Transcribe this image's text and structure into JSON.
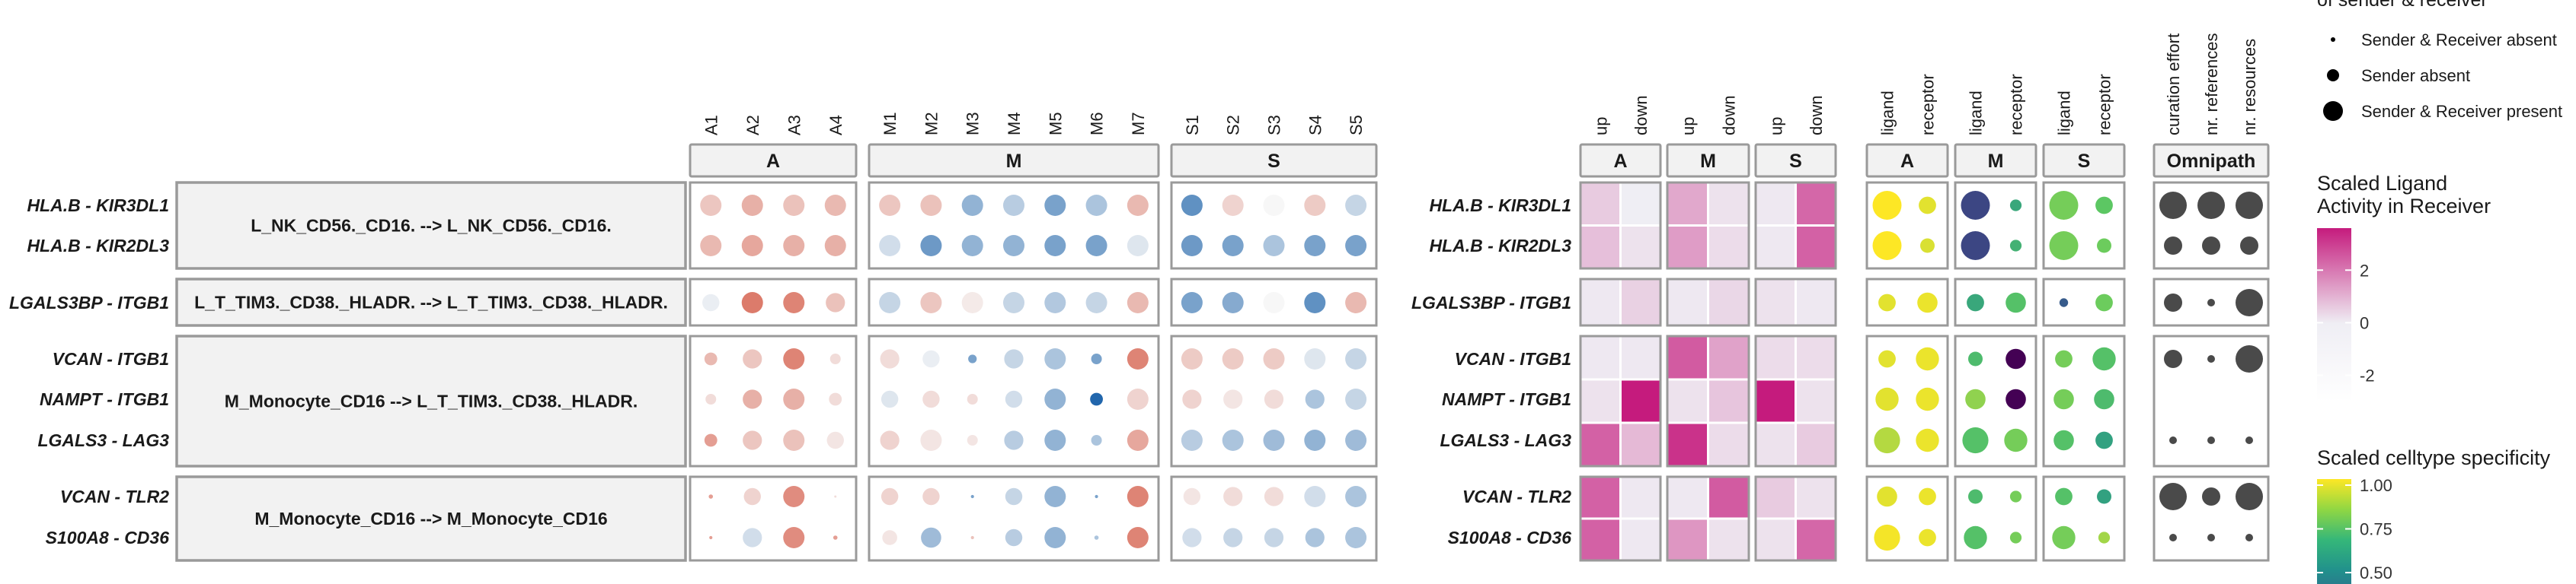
{
  "chart_data": {
    "type": "bubble-heatmap",
    "interactions": [
      {
        "group": "L_NK_CD56._CD16. --> L_NK_CD56._CD16.",
        "lr": [
          "HLA.B - KIR3DL1",
          "HLA.B - KIR2DL3"
        ]
      },
      {
        "group": "L_T_TIM3._CD38._HLADR. --> L_T_TIM3._CD38._HLADR.",
        "lr": [
          "LGALS3BP - ITGB1"
        ]
      },
      {
        "group": "M_Monocyte_CD16 --> L_T_TIM3._CD38._HLADR.",
        "lr": [
          "VCAN - ITGB1",
          "NAMPT - ITGB1",
          "LGALS3 - LAG3"
        ]
      },
      {
        "group": "M_Monocyte_CD16 --> M_Monocyte_CD16",
        "lr": [
          "VCAN - TLR2",
          "S100A8 - CD36"
        ]
      }
    ],
    "expression_panels": [
      {
        "name": "A",
        "columns": [
          "A1",
          "A2",
          "A3",
          "A4"
        ]
      },
      {
        "name": "M",
        "columns": [
          "M1",
          "M2",
          "M3",
          "M4",
          "M5",
          "M6",
          "M7"
        ]
      },
      {
        "name": "S",
        "columns": [
          "S1",
          "S2",
          "S3",
          "S4",
          "S5"
        ]
      }
    ],
    "expression_values": [
      [
        [
          0.55,
          0.8,
          0.6,
          0.7
        ],
        [
          0.55,
          0.6,
          -0.8,
          -0.5,
          -1.0,
          -0.6,
          0.7
        ],
        [
          -1.2,
          0.4,
          0.0,
          0.5,
          -0.4
        ]
      ],
      [
        [
          0.7,
          0.9,
          0.8,
          0.8
        ],
        [
          -0.3,
          -1.1,
          -0.8,
          -0.8,
          -1.0,
          -1.0,
          -0.2
        ],
        [
          -1.1,
          -1.0,
          -0.6,
          -1.0,
          -1.0
        ]
      ],
      [
        [
          -0.1,
          1.4,
          1.3,
          0.6
        ],
        [
          -0.4,
          0.55,
          0.15,
          -0.4,
          -0.55,
          -0.4,
          0.7
        ],
        [
          -1.0,
          -0.9,
          0.0,
          -1.2,
          0.7
        ]
      ],
      [
        [
          0.7,
          0.55,
          1.3,
          0.3
        ],
        [
          0.3,
          -0.1,
          -1.0,
          -0.4,
          -0.6,
          -1.0,
          1.3
        ],
        [
          0.5,
          0.5,
          0.5,
          -0.2,
          -0.4
        ]
      ],
      [
        [
          0.3,
          0.8,
          0.8,
          0.3
        ],
        [
          -0.2,
          0.3,
          0.3,
          -0.3,
          -0.8,
          -1.7,
          0.4
        ],
        [
          0.4,
          0.2,
          0.3,
          -0.6,
          -0.4
        ]
      ],
      [
        [
          1.0,
          0.55,
          0.6,
          0.2
        ],
        [
          0.4,
          0.2,
          0.2,
          -0.5,
          -0.8,
          -0.6,
          0.9
        ],
        [
          -0.5,
          -0.6,
          -0.7,
          -0.8,
          -0.7
        ]
      ],
      [
        [
          1.0,
          0.4,
          1.2,
          0.3
        ],
        [
          0.4,
          0.4,
          -1.0,
          -0.4,
          -0.8,
          -1.0,
          1.3
        ],
        [
          0.2,
          0.3,
          0.3,
          -0.3,
          -0.6
        ]
      ],
      [
        [
          1.0,
          -0.3,
          1.2,
          1.0
        ],
        [
          0.2,
          -0.7,
          0.6,
          -0.5,
          -0.8,
          -0.6,
          1.3
        ],
        [
          -0.3,
          -0.4,
          -0.4,
          -0.6,
          -0.6
        ]
      ]
    ],
    "expression_sizes": [
      [
        [
          1,
          1,
          1,
          1
        ],
        [
          1,
          1,
          1,
          1,
          1,
          1,
          1
        ],
        [
          1,
          1,
          1,
          1,
          1
        ]
      ],
      [
        [
          1,
          1,
          1,
          1
        ],
        [
          1,
          1,
          1,
          1,
          1,
          1,
          1
        ],
        [
          1,
          1,
          1,
          1,
          1
        ]
      ],
      [
        [
          0.8,
          1,
          1,
          0.9
        ],
        [
          1,
          1,
          1,
          1,
          1,
          1,
          1
        ],
        [
          1,
          1,
          1,
          1,
          1
        ]
      ],
      [
        [
          0.6,
          0.9,
          1,
          0.5
        ],
        [
          0.9,
          0.8,
          0.4,
          0.9,
          1,
          0.5,
          1
        ],
        [
          1,
          1,
          1,
          1,
          1
        ]
      ],
      [
        [
          0.5,
          0.9,
          1,
          0.6
        ],
        [
          0.8,
          0.8,
          0.5,
          0.8,
          1,
          0.6,
          1
        ],
        [
          0.9,
          0.9,
          0.9,
          0.9,
          1
        ]
      ],
      [
        [
          0.6,
          0.9,
          1,
          0.8
        ],
        [
          0.9,
          1,
          0.5,
          0.9,
          1,
          0.5,
          1
        ],
        [
          1,
          1,
          1,
          1,
          1
        ]
      ],
      [
        [
          0.2,
          0.8,
          1,
          0.1
        ],
        [
          0.8,
          0.8,
          0.15,
          0.8,
          1,
          0.15,
          1
        ],
        [
          0.8,
          0.9,
          0.9,
          1,
          1
        ]
      ],
      [
        [
          0.15,
          0.9,
          1,
          0.2
        ],
        [
          0.7,
          0.95,
          0.15,
          0.8,
          1,
          0.2,
          1
        ],
        [
          0.9,
          0.9,
          0.9,
          0.9,
          1
        ]
      ]
    ],
    "activity_panels": [
      {
        "name": "A",
        "columns": [
          "up",
          "down"
        ]
      },
      {
        "name": "M",
        "columns": [
          "up",
          "down"
        ]
      },
      {
        "name": "S",
        "columns": [
          "up",
          "down"
        ]
      }
    ],
    "activity_values": [
      [
        [
          0.6,
          0.0
        ],
        [
          1.2,
          0.2
        ],
        [
          0.1,
          2.3
        ]
      ],
      [
        [
          0.8,
          0.2
        ],
        [
          1.4,
          0.3
        ],
        [
          0.1,
          2.4
        ]
      ],
      [
        [
          0.1,
          0.5
        ],
        [
          0.1,
          0.4
        ],
        [
          0.2,
          0.1
        ]
      ],
      [
        [
          0.1,
          0.1
        ],
        [
          2.5,
          1.3
        ],
        [
          0.3,
          0.3
        ]
      ],
      [
        [
          0.2,
          3.6
        ],
        [
          0.2,
          0.7
        ],
        [
          3.6,
          0.2
        ]
      ],
      [
        [
          2.4,
          0.9
        ],
        [
          3.2,
          0.3
        ],
        [
          0.2,
          0.6
        ]
      ],
      [
        [
          2.4,
          0.1
        ],
        [
          0.1,
          2.5
        ],
        [
          0.6,
          0.2
        ]
      ],
      [
        [
          2.4,
          0.1
        ],
        [
          1.5,
          0.2
        ],
        [
          0.2,
          2.3
        ]
      ]
    ],
    "specificity_panels": [
      {
        "name": "A",
        "columns": [
          "ligand",
          "receptor"
        ]
      },
      {
        "name": "M",
        "columns": [
          "ligand",
          "receptor"
        ]
      },
      {
        "name": "S",
        "columns": [
          "ligand",
          "receptor"
        ]
      }
    ],
    "specificity_values": [
      [
        [
          1.0,
          0.97
        ],
        [
          0.45,
          0.72
        ],
        [
          0.85,
          0.82
        ]
      ],
      [
        [
          1.0,
          0.96
        ],
        [
          0.45,
          0.75
        ],
        [
          0.85,
          0.84
        ]
      ],
      [
        [
          0.97,
          0.98
        ],
        [
          0.72,
          0.8
        ],
        [
          0.5,
          0.84
        ]
      ],
      [
        [
          0.97,
          0.98
        ],
        [
          0.78,
          0.3
        ],
        [
          0.85,
          0.8
        ]
      ],
      [
        [
          0.97,
          0.98
        ],
        [
          0.88,
          0.3
        ],
        [
          0.85,
          0.78
        ]
      ],
      [
        [
          0.92,
          0.98
        ],
        [
          0.8,
          0.85
        ],
        [
          0.8,
          0.7
        ]
      ],
      [
        [
          0.97,
          0.98
        ],
        [
          0.78,
          0.85
        ],
        [
          0.8,
          0.7
        ]
      ],
      [
        [
          0.99,
          0.98
        ],
        [
          0.8,
          0.85
        ],
        [
          0.85,
          0.9
        ]
      ]
    ],
    "specificity_sizes": [
      [
        [
          1.0,
          0.6
        ],
        [
          1.0,
          0.4
        ],
        [
          1.0,
          0.6
        ]
      ],
      [
        [
          1.0,
          0.5
        ],
        [
          1.0,
          0.4
        ],
        [
          1.0,
          0.5
        ]
      ],
      [
        [
          0.6,
          0.7
        ],
        [
          0.6,
          0.7
        ],
        [
          0.3,
          0.6
        ]
      ],
      [
        [
          0.6,
          0.8
        ],
        [
          0.5,
          0.7
        ],
        [
          0.6,
          0.8
        ]
      ],
      [
        [
          0.8,
          0.8
        ],
        [
          0.7,
          0.7
        ],
        [
          0.7,
          0.7
        ]
      ],
      [
        [
          0.9,
          0.8
        ],
        [
          0.9,
          0.8
        ],
        [
          0.7,
          0.6
        ]
      ],
      [
        [
          0.7,
          0.6
        ],
        [
          0.5,
          0.4
        ],
        [
          0.6,
          0.5
        ]
      ],
      [
        [
          0.9,
          0.6
        ],
        [
          0.8,
          0.4
        ],
        [
          0.8,
          0.4
        ]
      ]
    ],
    "omnipath_panel": {
      "name": "Omnipath",
      "columns": [
        "curation effort",
        "nr. references",
        "nr. resources"
      ]
    },
    "omnipath_sizes": [
      [
        3,
        3,
        3
      ],
      [
        2,
        2,
        2
      ],
      [
        2,
        1,
        3
      ],
      [
        2,
        1,
        3
      ],
      [
        0,
        0,
        0
      ],
      [
        1,
        1,
        1
      ],
      [
        3,
        2,
        3
      ],
      [
        1,
        1,
        1
      ]
    ],
    "legend_presence": {
      "title": "of sender & receiver",
      "items": [
        {
          "size": 1,
          "label": "Sender & Receiver absent"
        },
        {
          "size": 2,
          "label": "Sender absent"
        },
        {
          "size": 3,
          "label": "Sender & Receiver present"
        }
      ]
    },
    "legend_activity": {
      "title_line1": "Scaled Ligand",
      "title_line2": "Activity in Receiver",
      "ticks": [
        "2",
        "0",
        "-2"
      ],
      "range": [
        -3,
        3.6
      ]
    },
    "legend_specificity": {
      "title": "Scaled celltype specificity",
      "ticks": [
        "1.00",
        "0.75",
        "0.50"
      ],
      "range": [
        0.3,
        1.0
      ]
    },
    "colors": {
      "expr_low": "#2166ac",
      "expr_mid": "#f7f7f7",
      "expr_high": "#d6604d",
      "act_high": "#c51b7d",
      "act_mid": "#efeef4",
      "panel_border": "#9a9a9a",
      "strip_fill": "#f2f2f2",
      "omni_dot": "#4a4a4a"
    }
  }
}
